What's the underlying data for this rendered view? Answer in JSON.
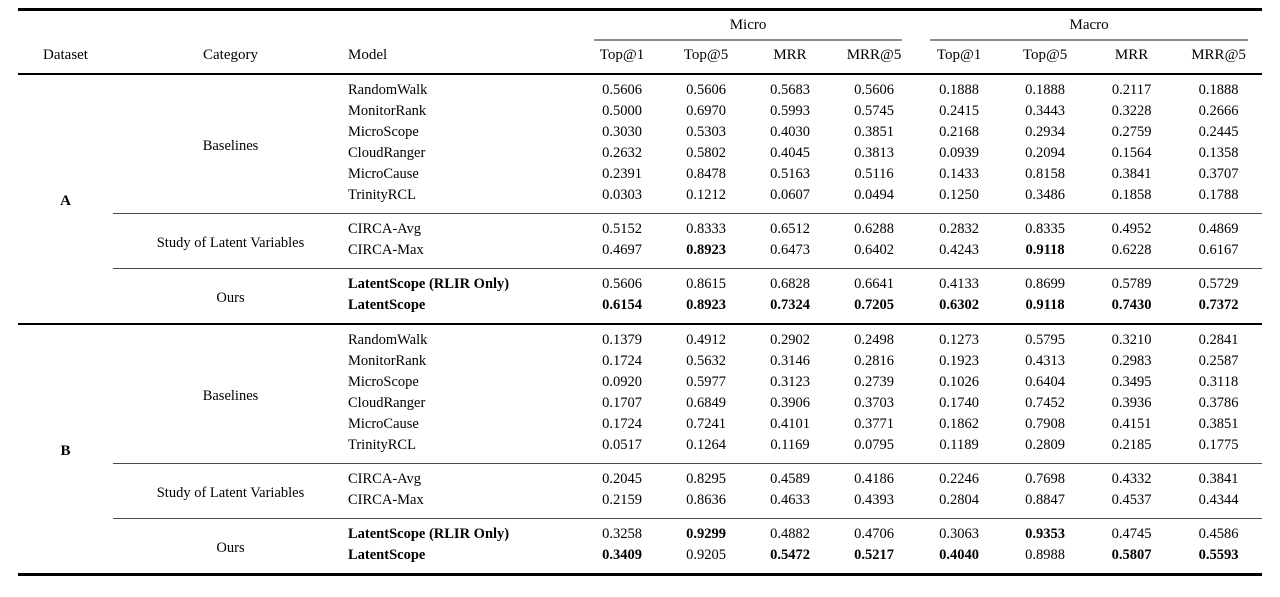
{
  "colors": {
    "background": "#ffffff",
    "text": "#000000",
    "heavy_rule": "#000000",
    "light_rule": "#8a8a8a"
  },
  "table": {
    "column_headers": {
      "dataset": "Dataset",
      "category": "Category",
      "model": "Model"
    },
    "metric_groups": [
      {
        "label": "Micro",
        "metrics": [
          "Top@1",
          "Top@5",
          "MRR",
          "MRR@5"
        ]
      },
      {
        "label": "Macro",
        "metrics": [
          "Top@1",
          "Top@5",
          "MRR",
          "MRR@5"
        ]
      }
    ],
    "sections": [
      {
        "dataset": "A",
        "categories": [
          {
            "name": "Baselines",
            "rows": [
              {
                "model": "RandomWalk",
                "model_bold": false,
                "values": [
                  "0.5606",
                  "0.5606",
                  "0.5683",
                  "0.5606",
                  "0.1888",
                  "0.1888",
                  "0.2117",
                  "0.1888"
                ],
                "bold_values": []
              },
              {
                "model": "MonitorRank",
                "model_bold": false,
                "values": [
                  "0.5000",
                  "0.6970",
                  "0.5993",
                  "0.5745",
                  "0.2415",
                  "0.3443",
                  "0.3228",
                  "0.2666"
                ],
                "bold_values": []
              },
              {
                "model": "MicroScope",
                "model_bold": false,
                "values": [
                  "0.3030",
                  "0.5303",
                  "0.4030",
                  "0.3851",
                  "0.2168",
                  "0.2934",
                  "0.2759",
                  "0.2445"
                ],
                "bold_values": []
              },
              {
                "model": "CloudRanger",
                "model_bold": false,
                "values": [
                  "0.2632",
                  "0.5802",
                  "0.4045",
                  "0.3813",
                  "0.0939",
                  "0.2094",
                  "0.1564",
                  "0.1358"
                ],
                "bold_values": []
              },
              {
                "model": "MicroCause",
                "model_bold": false,
                "values": [
                  "0.2391",
                  "0.8478",
                  "0.5163",
                  "0.5116",
                  "0.1433",
                  "0.8158",
                  "0.3841",
                  "0.3707"
                ],
                "bold_values": []
              },
              {
                "model": "TrinityRCL",
                "model_bold": false,
                "values": [
                  "0.0303",
                  "0.1212",
                  "0.0607",
                  "0.0494",
                  "0.1250",
                  "0.3486",
                  "0.1858",
                  "0.1788"
                ],
                "bold_values": []
              }
            ]
          },
          {
            "name": "Study of Latent Variables",
            "rows": [
              {
                "model": "CIRCA-Avg",
                "model_bold": false,
                "values": [
                  "0.5152",
                  "0.8333",
                  "0.6512",
                  "0.6288",
                  "0.2832",
                  "0.8335",
                  "0.4952",
                  "0.4869"
                ],
                "bold_values": []
              },
              {
                "model": "CIRCA-Max",
                "model_bold": false,
                "values": [
                  "0.4697",
                  "0.8923",
                  "0.6473",
                  "0.6402",
                  "0.4243",
                  "0.9118",
                  "0.6228",
                  "0.6167"
                ],
                "bold_values": [
                  1,
                  5
                ]
              }
            ]
          },
          {
            "name": "Ours",
            "rows": [
              {
                "model": "LatentScope (RLIR Only)",
                "model_bold": true,
                "values": [
                  "0.5606",
                  "0.8615",
                  "0.6828",
                  "0.6641",
                  "0.4133",
                  "0.8699",
                  "0.5789",
                  "0.5729"
                ],
                "bold_values": []
              },
              {
                "model": "LatentScope",
                "model_bold": true,
                "values": [
                  "0.6154",
                  "0.8923",
                  "0.7324",
                  "0.7205",
                  "0.6302",
                  "0.9118",
                  "0.7430",
                  "0.7372"
                ],
                "bold_values": [
                  0,
                  1,
                  2,
                  3,
                  4,
                  5,
                  6,
                  7
                ]
              }
            ]
          }
        ]
      },
      {
        "dataset": "B",
        "categories": [
          {
            "name": "Baselines",
            "rows": [
              {
                "model": "RandomWalk",
                "model_bold": false,
                "values": [
                  "0.1379",
                  "0.4912",
                  "0.2902",
                  "0.2498",
                  "0.1273",
                  "0.5795",
                  "0.3210",
                  "0.2841"
                ],
                "bold_values": []
              },
              {
                "model": "MonitorRank",
                "model_bold": false,
                "values": [
                  "0.1724",
                  "0.5632",
                  "0.3146",
                  "0.2816",
                  "0.1923",
                  "0.4313",
                  "0.2983",
                  "0.2587"
                ],
                "bold_values": []
              },
              {
                "model": "MicroScope",
                "model_bold": false,
                "values": [
                  "0.0920",
                  "0.5977",
                  "0.3123",
                  "0.2739",
                  "0.1026",
                  "0.6404",
                  "0.3495",
                  "0.3118"
                ],
                "bold_values": []
              },
              {
                "model": "CloudRanger",
                "model_bold": false,
                "values": [
                  "0.1707",
                  "0.6849",
                  "0.3906",
                  "0.3703",
                  "0.1740",
                  "0.7452",
                  "0.3936",
                  "0.3786"
                ],
                "bold_values": []
              },
              {
                "model": "MicroCause",
                "model_bold": false,
                "values": [
                  "0.1724",
                  "0.7241",
                  "0.4101",
                  "0.3771",
                  "0.1862",
                  "0.7908",
                  "0.4151",
                  "0.3851"
                ],
                "bold_values": []
              },
              {
                "model": "TrinityRCL",
                "model_bold": false,
                "values": [
                  "0.0517",
                  "0.1264",
                  "0.1169",
                  "0.0795",
                  "0.1189",
                  "0.2809",
                  "0.2185",
                  "0.1775"
                ],
                "bold_values": []
              }
            ]
          },
          {
            "name": "Study of Latent Variables",
            "rows": [
              {
                "model": "CIRCA-Avg",
                "model_bold": false,
                "values": [
                  "0.2045",
                  "0.8295",
                  "0.4589",
                  "0.4186",
                  "0.2246",
                  "0.7698",
                  "0.4332",
                  "0.3841"
                ],
                "bold_values": []
              },
              {
                "model": "CIRCA-Max",
                "model_bold": false,
                "values": [
                  "0.2159",
                  "0.8636",
                  "0.4633",
                  "0.4393",
                  "0.2804",
                  "0.8847",
                  "0.4537",
                  "0.4344"
                ],
                "bold_values": []
              }
            ]
          },
          {
            "name": "Ours",
            "rows": [
              {
                "model": "LatentScope (RLIR Only)",
                "model_bold": true,
                "values": [
                  "0.3258",
                  "0.9299",
                  "0.4882",
                  "0.4706",
                  "0.3063",
                  "0.9353",
                  "0.4745",
                  "0.4586"
                ],
                "bold_values": [
                  1,
                  5
                ]
              },
              {
                "model": "LatentScope",
                "model_bold": true,
                "values": [
                  "0.3409",
                  "0.9205",
                  "0.5472",
                  "0.5217",
                  "0.4040",
                  "0.8988",
                  "0.5807",
                  "0.5593"
                ],
                "bold_values": [
                  0,
                  2,
                  3,
                  4,
                  6,
                  7
                ]
              }
            ]
          }
        ]
      }
    ]
  }
}
